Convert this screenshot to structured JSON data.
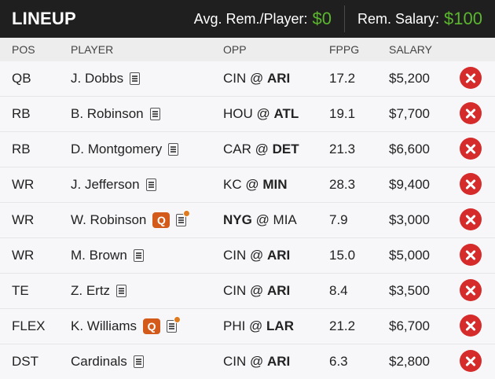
{
  "header": {
    "title": "LINEUP",
    "avg_label": "Avg. Rem./Player:",
    "avg_value": "$0",
    "rem_label": "Rem. Salary:",
    "rem_value": "$100",
    "money_color": "#5bb72e"
  },
  "columns": [
    "POS",
    "PLAYER",
    "OPP",
    "FPPG",
    "SALARY"
  ],
  "rows": [
    {
      "pos": "QB",
      "player": "J. Dobbs",
      "badge": "",
      "news_alert": false,
      "opp_pre": "CIN @ ",
      "opp_bold": "ARI",
      "opp_post": "",
      "fppg": "17.2",
      "salary": "$5,200"
    },
    {
      "pos": "RB",
      "player": "B. Robinson",
      "badge": "",
      "news_alert": false,
      "opp_pre": "HOU @ ",
      "opp_bold": "ATL",
      "opp_post": "",
      "fppg": "19.1",
      "salary": "$7,700"
    },
    {
      "pos": "RB",
      "player": "D. Montgomery",
      "badge": "",
      "news_alert": false,
      "opp_pre": "CAR @ ",
      "opp_bold": "DET",
      "opp_post": "",
      "fppg": "21.3",
      "salary": "$6,600"
    },
    {
      "pos": "WR",
      "player": "J. Jefferson",
      "badge": "",
      "news_alert": false,
      "opp_pre": "KC @ ",
      "opp_bold": "MIN",
      "opp_post": "",
      "fppg": "28.3",
      "salary": "$9,400"
    },
    {
      "pos": "WR",
      "player": "W. Robinson",
      "badge": "Q",
      "news_alert": true,
      "opp_pre": "",
      "opp_bold": "NYG",
      "opp_post": " @ MIA",
      "fppg": "7.9",
      "salary": "$3,000"
    },
    {
      "pos": "WR",
      "player": "M. Brown",
      "badge": "",
      "news_alert": false,
      "opp_pre": "CIN @ ",
      "opp_bold": "ARI",
      "opp_post": "",
      "fppg": "15.0",
      "salary": "$5,000"
    },
    {
      "pos": "TE",
      "player": "Z. Ertz",
      "badge": "",
      "news_alert": false,
      "opp_pre": "CIN @ ",
      "opp_bold": "ARI",
      "opp_post": "",
      "fppg": "8.4",
      "salary": "$3,500"
    },
    {
      "pos": "FLEX",
      "player": "K. Williams",
      "badge": "Q",
      "news_alert": true,
      "opp_pre": "PHI @ ",
      "opp_bold": "LAR",
      "opp_post": "",
      "fppg": "21.2",
      "salary": "$6,700"
    },
    {
      "pos": "DST",
      "player": "Cardinals",
      "badge": "",
      "news_alert": false,
      "opp_pre": "CIN @ ",
      "opp_bold": "ARI",
      "opp_post": "",
      "fppg": "6.3",
      "salary": "$2,800"
    }
  ]
}
